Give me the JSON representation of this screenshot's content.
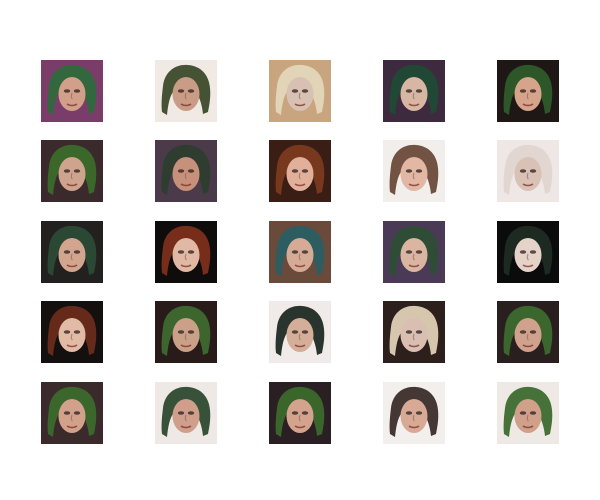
{
  "figure": {
    "rows": 5,
    "columns": 5,
    "samples": [
      {
        "index": 1,
        "subject": "face-sample",
        "background": "#7a3d6a",
        "hair": "#2f6a3c",
        "skin": "#d2a08a"
      },
      {
        "index": 2,
        "subject": "face-sample",
        "background": "#f1e9e4",
        "hair": "#3b4a2a",
        "skin": "#c99c86"
      },
      {
        "index": 3,
        "subject": "face-sample",
        "background": "#c9a57f",
        "hair": "#e4d6b9",
        "skin": "#d8c0b2"
      },
      {
        "index": 4,
        "subject": "face-sample",
        "background": "#3e2a3f",
        "hair": "#1f4a34",
        "skin": "#d7b6a3"
      },
      {
        "index": 5,
        "subject": "face-sample",
        "background": "#1e1716",
        "hair": "#2e5a2a",
        "skin": "#d5a48a"
      },
      {
        "index": 6,
        "subject": "face-sample",
        "background": "#3a2a2c",
        "hair": "#3c6a2b",
        "skin": "#cfa48f"
      },
      {
        "index": 7,
        "subject": "face-sample",
        "background": "#4a3a4a",
        "hair": "#2d3c2e",
        "skin": "#c6907a"
      },
      {
        "index": 8,
        "subject": "face-sample",
        "background": "#3a1d15",
        "hair": "#7a3a1f",
        "skin": "#e1b09a"
      },
      {
        "index": 9,
        "subject": "face-sample",
        "background": "#f1eeec",
        "hair": "#6a4a3a",
        "skin": "#e2b7a4"
      },
      {
        "index": 10,
        "subject": "face-sample",
        "background": "#efe7e6",
        "hair": "#dfd6cf",
        "skin": "#d9c1b6"
      },
      {
        "index": 11,
        "subject": "face-sample",
        "background": "#23211f",
        "hair": "#2b4b35",
        "skin": "#d2a58f"
      },
      {
        "index": 12,
        "subject": "face-sample",
        "background": "#0f0c0c",
        "hair": "#7c2f1b",
        "skin": "#e0b8a3"
      },
      {
        "index": 13,
        "subject": "face-sample",
        "background": "#6a4a3a",
        "hair": "#2a5e63",
        "skin": "#d6ab96"
      },
      {
        "index": 14,
        "subject": "face-sample",
        "background": "#4a3a55",
        "hair": "#2d4e35",
        "skin": "#d9b5a2"
      },
      {
        "index": 15,
        "subject": "face-sample",
        "background": "#0b0b0b",
        "hair": "#1d2c24",
        "skin": "#e5d2c8"
      },
      {
        "index": 16,
        "subject": "face-sample",
        "background": "#141010",
        "hair": "#6a2c1b",
        "skin": "#e2bba6"
      },
      {
        "index": 17,
        "subject": "face-sample",
        "background": "#2a1b1b",
        "hair": "#3d6a2e",
        "skin": "#caa088"
      },
      {
        "index": 18,
        "subject": "face-sample",
        "background": "#f0ebe8",
        "hair": "#1f2a24",
        "skin": "#d5ae9a"
      },
      {
        "index": 19,
        "subject": "face-sample",
        "background": "#2c1f1c",
        "hair": "#e0d0b6",
        "skin": "#d8bfb2"
      },
      {
        "index": 20,
        "subject": "face-sample",
        "background": "#2a1f1f",
        "hair": "#3c6a2e",
        "skin": "#d0a18c"
      },
      {
        "index": 21,
        "subject": "face-sample",
        "background": "#3a2a2b",
        "hair": "#3b6a2c",
        "skin": "#d2a18b"
      },
      {
        "index": 22,
        "subject": "face-sample",
        "background": "#efe9e6",
        "hair": "#2c4a2f",
        "skin": "#cf9f8b"
      },
      {
        "index": 23,
        "subject": "face-sample",
        "background": "#2a1f22",
        "hair": "#3b6a2c",
        "skin": "#d3a38d"
      },
      {
        "index": 24,
        "subject": "face-sample",
        "background": "#f3efed",
        "hair": "#3a2c2a",
        "skin": "#d8a995"
      },
      {
        "index": 25,
        "subject": "face-sample",
        "background": "#efe9e6",
        "hair": "#3c6a2e",
        "skin": "#d0a08b"
      }
    ]
  }
}
